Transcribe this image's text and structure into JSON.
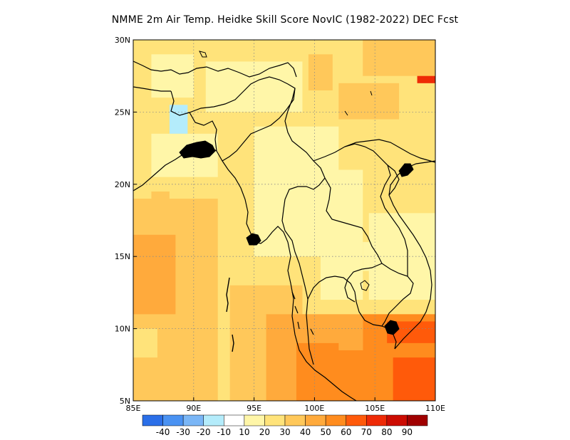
{
  "title": "NMME  2m Air Temp. Heidke Skill Score NovIC (1982-2022) DEC Fcst",
  "map": {
    "lon_range": [
      85,
      110
    ],
    "lat_range": [
      5,
      30
    ],
    "x_ticks": [
      {
        "value": 85,
        "label": "85E"
      },
      {
        "value": 90,
        "label": "90E"
      },
      {
        "value": 95,
        "label": "95E"
      },
      {
        "value": 100,
        "label": "100E"
      },
      {
        "value": 105,
        "label": "105E"
      },
      {
        "value": 110,
        "label": "110E"
      }
    ],
    "y_ticks": [
      {
        "value": 5,
        "label": "5N"
      },
      {
        "value": 10,
        "label": "10N"
      },
      {
        "value": 15,
        "label": "15N"
      },
      {
        "value": 20,
        "label": "20N"
      },
      {
        "value": 25,
        "label": "25N"
      },
      {
        "value": 30,
        "label": "30N"
      }
    ],
    "grid": true
  },
  "colorbar": {
    "colors": [
      "#2b6fe8",
      "#4a92f2",
      "#7ab6f6",
      "#b4ecfb",
      "#ffffff",
      "#fff6a8",
      "#ffe37a",
      "#ffc85a",
      "#ffaa3c",
      "#ff8c1e",
      "#ff5a0a",
      "#ee2a06",
      "#cc0c02",
      "#a00000"
    ],
    "labels": [
      "-40",
      "-30",
      "-20",
      "-10",
      "10",
      "20",
      "30",
      "40",
      "50",
      "60",
      "70",
      "80",
      "90"
    ]
  },
  "skill_blocks": [
    {
      "lon": [
        85,
        110
      ],
      "lat": [
        5,
        30
      ],
      "level": 20
    },
    {
      "lon": [
        85,
        92
      ],
      "lat": [
        5,
        19
      ],
      "level": 30
    },
    {
      "lon": [
        85,
        88.5
      ],
      "lat": [
        11,
        16.5
      ],
      "level": 40
    },
    {
      "lon": [
        93,
        99
      ],
      "lat": [
        5,
        13
      ],
      "level": 30
    },
    {
      "lon": [
        96,
        104
      ],
      "lat": [
        5,
        11
      ],
      "level": 40
    },
    {
      "lon": [
        98.5,
        102
      ],
      "lat": [
        5,
        9
      ],
      "level": 50
    },
    {
      "lon": [
        101,
        106
      ],
      "lat": [
        5,
        8.5
      ],
      "level": 50
    },
    {
      "lon": [
        104,
        110
      ],
      "lat": [
        5,
        11
      ],
      "level": 50
    },
    {
      "lon": [
        106.5,
        110
      ],
      "lat": [
        5,
        8
      ],
      "level": 60
    },
    {
      "lon": [
        106,
        110
      ],
      "lat": [
        9,
        10.5
      ],
      "level": 60
    },
    {
      "lon": [
        104.5,
        110
      ],
      "lat": [
        12,
        18
      ],
      "level": 10
    },
    {
      "lon": [
        86.5,
        92
      ],
      "lat": [
        20.5,
        23.5
      ],
      "level": 10
    },
    {
      "lon": [
        91,
        99
      ],
      "lat": [
        25,
        28.5
      ],
      "level": 10
    },
    {
      "lon": [
        95,
        102
      ],
      "lat": [
        15,
        24
      ],
      "level": 10
    },
    {
      "lon": [
        100.5,
        104
      ],
      "lat": [
        12,
        21
      ],
      "level": 10
    },
    {
      "lon": [
        104,
        106.5
      ],
      "lat": [
        14,
        16
      ],
      "level": 10
    },
    {
      "lon": [
        86.5,
        90
      ],
      "lat": [
        26,
        29
      ],
      "level": 10
    },
    {
      "lon": [
        102,
        107
      ],
      "lat": [
        24.5,
        27
      ],
      "level": 30
    },
    {
      "lon": [
        99.5,
        101.5
      ],
      "lat": [
        26.5,
        29
      ],
      "level": 30
    },
    {
      "lon": [
        108.5,
        110
      ],
      "lat": [
        27,
        30
      ],
      "level": 70
    },
    {
      "lon": [
        104.5,
        106.5
      ],
      "lat": [
        28.5,
        30
      ],
      "level": 40
    },
    {
      "lon": [
        104,
        110
      ],
      "lat": [
        27.5,
        30
      ],
      "level": 30
    },
    {
      "lon": [
        88,
        89.5
      ],
      "lat": [
        23.5,
        25.5
      ],
      "level": -10
    },
    {
      "lon": [
        86.5,
        88
      ],
      "lat": [
        17,
        19.5
      ],
      "level": 30
    },
    {
      "lon": [
        88.5,
        90
      ],
      "lat": [
        16.5,
        18
      ],
      "level": 30
    },
    {
      "lon": [
        85,
        87
      ],
      "lat": [
        8,
        10
      ],
      "level": 20
    }
  ]
}
